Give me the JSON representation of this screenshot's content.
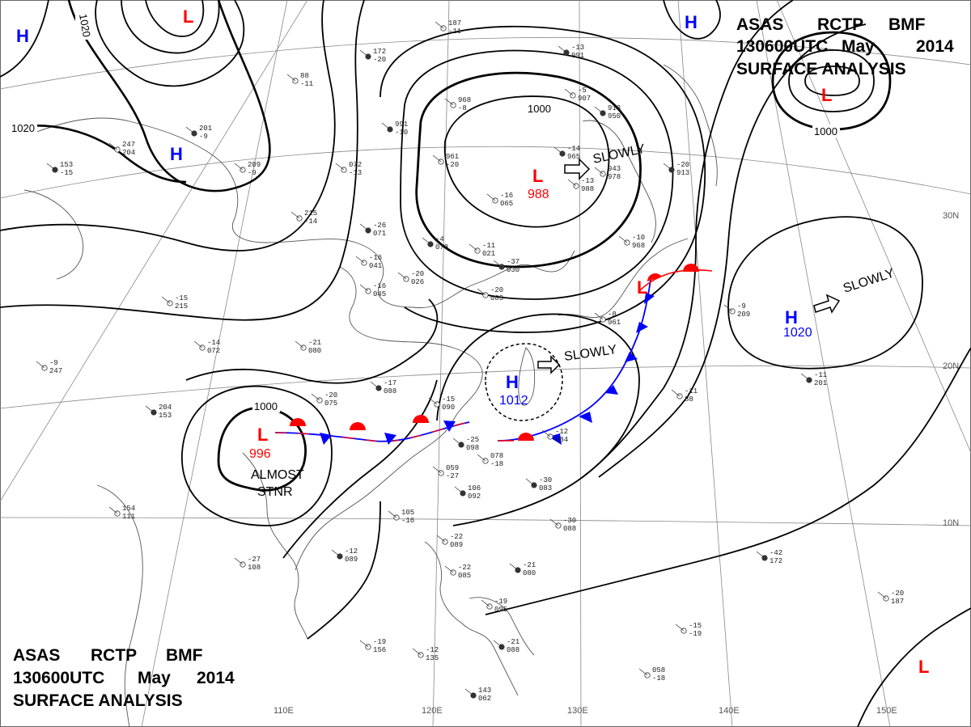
{
  "header_top": {
    "line1_a": "ASAS",
    "line1_b": "RCTP",
    "line1_c": "BMF",
    "line2_a": "130600UTC",
    "line2_b": "May",
    "line2_c": "2014",
    "line3": "SURFACE  ANALYSIS"
  },
  "header_bottom": {
    "line1_a": "ASAS",
    "line1_b": "RCTP",
    "line1_c": "BMF",
    "line2_a": "130600UTC",
    "line2_b": "May",
    "line2_c": "2014",
    "line3": "SURFACE  ANALYSIS"
  },
  "longitudes": [
    "110E",
    "120E",
    "130E",
    "140E",
    "150E"
  ],
  "latitudes": [
    "30N",
    "20N",
    "10N"
  ],
  "isobar_labels": {
    "a": "1020",
    "b": "1020",
    "c": "1000",
    "d": "1000",
    "e": "1000"
  },
  "systems": {
    "low_northwest_letter": "L",
    "high_far_west_letter": "H",
    "high_north_letter": "H",
    "high_northeast_letter": "H",
    "low_northeast_letter": "L",
    "low_east_china_sea": {
      "letter": "L",
      "value": "988",
      "motion": "SLOWLY"
    },
    "low_south_china": {
      "letter": "L",
      "value": "996",
      "motion1": "ALMOST",
      "motion2": "STNR"
    },
    "high_taiwan": {
      "letter": "H",
      "value": "1012",
      "motion": "SLOWLY"
    },
    "high_pacific": {
      "letter": "H",
      "value": "1020",
      "motion": "SLOWLY"
    },
    "low_japan_letter": "L",
    "low_southeast_letter": "L"
  },
  "colors": {
    "low": "#ff0000",
    "high": "#0000ff",
    "isobar": "#000000",
    "warm_front": "#ff0000",
    "cold_front": "#0000ff",
    "coast": "#555555",
    "grid": "#888888"
  },
  "stations": [
    "172",
    "-20",
    "187",
    "-11",
    "88",
    "-11",
    "201",
    "-9",
    "209",
    "-9",
    "247",
    "204",
    "153",
    "-15",
    "215",
    "-14",
    "072",
    "-13",
    "991",
    "-10",
    "968",
    "-8",
    "961",
    "-20",
    "913",
    "950",
    "-5",
    "907",
    "943",
    "978",
    "-14",
    "965",
    "-13",
    "988",
    "-16",
    "065",
    "-4",
    "078",
    "-11",
    "021",
    "-20",
    "026",
    "-26",
    "071",
    "-16",
    "041",
    "-16",
    "045",
    "-37",
    "030",
    "-20",
    "083",
    "-21",
    "080",
    "-17",
    "088",
    "-15",
    "090",
    "-20",
    "075",
    "-25",
    "098",
    "078",
    "-18",
    "059",
    "-27",
    "106",
    "092",
    "105",
    "-16",
    "154",
    "111",
    "-12",
    "089",
    "-27",
    "108",
    "-12",
    "084",
    "-30",
    "083",
    "-30",
    "088",
    "-22",
    "089",
    "-21",
    "080",
    "-22",
    "085",
    "-19",
    "095",
    "-21",
    "088",
    "-12",
    "135",
    "-19",
    "156",
    "143",
    "062",
    "058",
    "-18",
    "-15",
    "-19",
    "-42"
  ]
}
